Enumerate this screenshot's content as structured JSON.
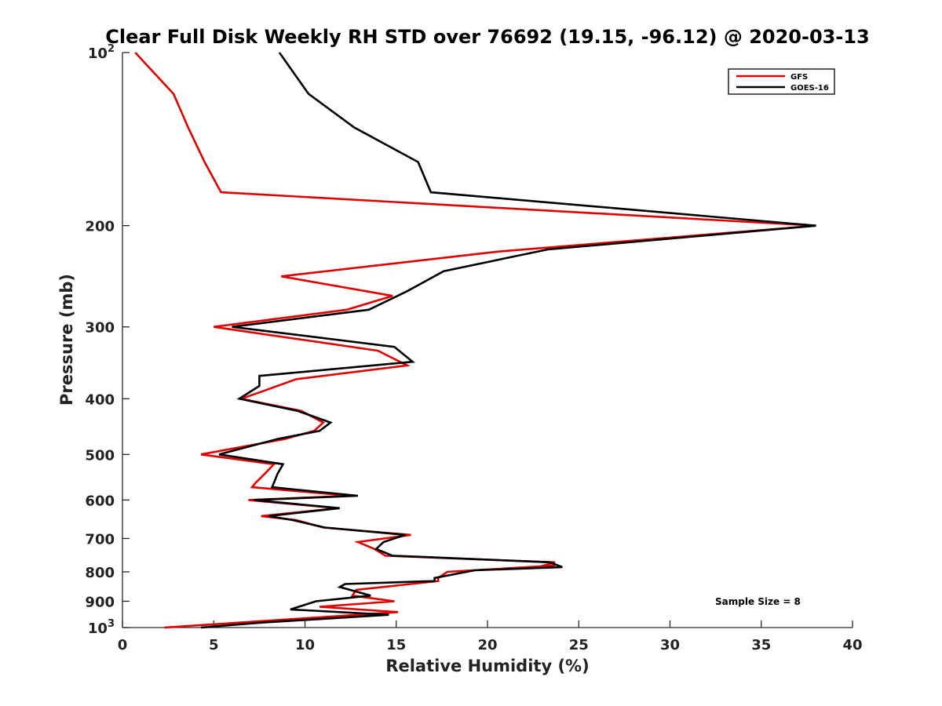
{
  "chart_data": {
    "type": "line",
    "title": "Clear Full Disk Weekly RH STD over 76692 (19.15, -96.12) @ 2020-03-13",
    "xlabel": "Relative Humidity (%)",
    "ylabel": "Pressure (mb)",
    "xlim": [
      0,
      40
    ],
    "ylim": [
      100,
      1000
    ],
    "yscale": "log",
    "y_reversed": true,
    "x_ticks": [
      0,
      5,
      10,
      15,
      20,
      25,
      30,
      35,
      40
    ],
    "x_tick_labels": [
      "0",
      "5",
      "10",
      "15",
      "20",
      "25",
      "30",
      "35",
      "40"
    ],
    "y_ticks": [
      100,
      200,
      300,
      400,
      500,
      600,
      700,
      800,
      900,
      1000
    ],
    "y_tick_labels": [
      {
        "base": "10",
        "exp": "2"
      },
      {
        "base": "200",
        "exp": ""
      },
      {
        "base": "300",
        "exp": ""
      },
      {
        "base": "400",
        "exp": ""
      },
      {
        "base": "500",
        "exp": ""
      },
      {
        "base": "600",
        "exp": ""
      },
      {
        "base": "700",
        "exp": ""
      },
      {
        "base": "800",
        "exp": ""
      },
      {
        "base": "900",
        "exp": ""
      },
      {
        "base": "10",
        "exp": "3"
      }
    ],
    "legend_position": "top-right",
    "annotation": "Sample Size = 8",
    "series": [
      {
        "name": "GFS",
        "color": "#e00000",
        "x": [
          0.7,
          2.8,
          3.6,
          4.5,
          5.4,
          38.0,
          20.5,
          8.7,
          14.8,
          12.3,
          5.0,
          14.0,
          15.6,
          9.5,
          7.5,
          6.5,
          9.8,
          11.0,
          10.5,
          8.9,
          4.3,
          8.3,
          7.8,
          7.3,
          7.1,
          12.5,
          6.9,
          11.8,
          7.6,
          9.5,
          11.0,
          15.8,
          12.9,
          13.8,
          14.4,
          23.7,
          22.8,
          23.7,
          17.8,
          17.3,
          17.3,
          12.8,
          12.6,
          14.9,
          10.8,
          15.1,
          2.3
        ],
        "y": [
          100,
          118,
          135,
          155,
          175,
          200,
          222,
          245,
          265,
          280,
          300,
          330,
          350,
          370,
          390,
          400,
          420,
          440,
          455,
          470,
          500,
          520,
          540,
          560,
          570,
          590,
          600,
          620,
          640,
          650,
          670,
          690,
          710,
          730,
          750,
          770,
          785,
          780,
          800,
          820,
          830,
          860,
          880,
          900,
          920,
          940,
          1000
        ]
      },
      {
        "name": "GOES-16",
        "color": "#000000",
        "x": [
          8.6,
          10.2,
          12.7,
          16.2,
          16.9,
          38.0,
          23.3,
          17.6,
          15.6,
          13.5,
          6.0,
          14.9,
          15.9,
          7.5,
          7.5,
          6.4,
          9.6,
          11.4,
          10.8,
          8.5,
          5.3,
          8.8,
          8.5,
          8.3,
          8.2,
          12.9,
          7.2,
          11.9,
          8.0,
          9.3,
          11.1,
          15.5,
          14.3,
          13.9,
          14.8,
          23.4,
          24.1,
          19.3,
          17.1,
          17.1,
          12.2,
          11.9,
          13.6,
          10.6,
          9.2,
          14.6,
          7.7,
          4.3
        ],
        "y": [
          100,
          118,
          135,
          155,
          175,
          200,
          220,
          240,
          260,
          280,
          300,
          325,
          345,
          365,
          380,
          400,
          420,
          440,
          455,
          470,
          500,
          520,
          540,
          560,
          570,
          590,
          600,
          620,
          640,
          650,
          670,
          690,
          710,
          730,
          750,
          770,
          785,
          795,
          820,
          830,
          840,
          850,
          880,
          900,
          930,
          950,
          980,
          1000
        ]
      }
    ]
  }
}
